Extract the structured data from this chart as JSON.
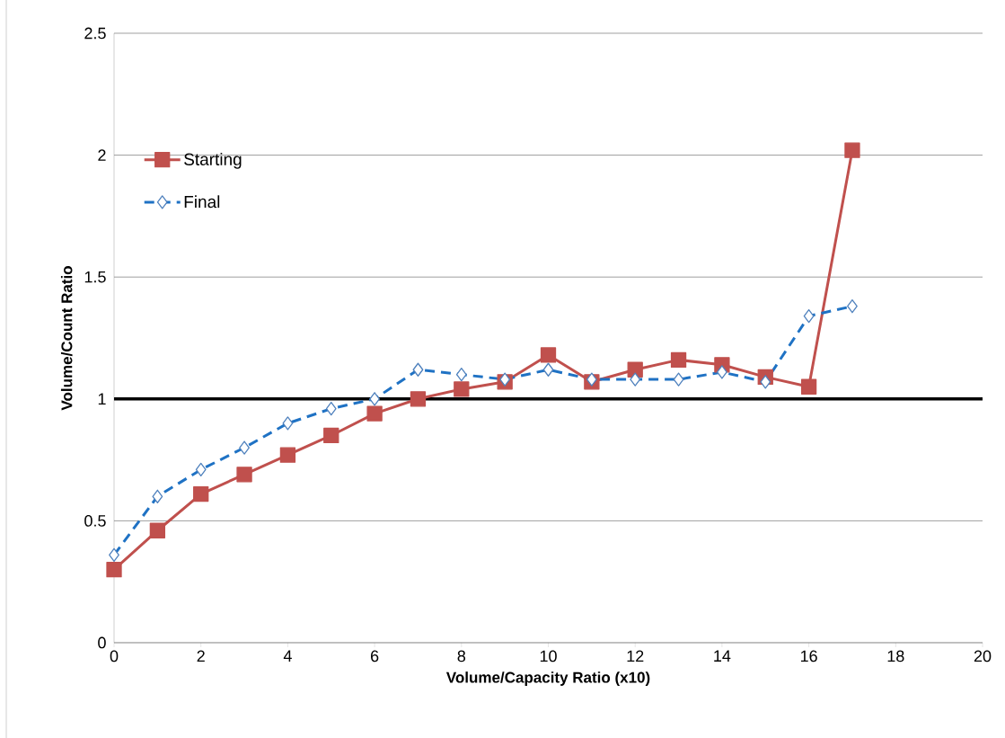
{
  "chart_data": {
    "type": "line",
    "xlabel": "Volume/Capacity Ratio (x10)",
    "ylabel": "Volume/Count Ratio",
    "x": [
      0,
      1,
      2,
      3,
      4,
      5,
      6,
      7,
      8,
      9,
      10,
      11,
      12,
      13,
      14,
      15,
      16,
      17
    ],
    "series": [
      {
        "name": "Starting",
        "color": "#c0504d",
        "marker": "square",
        "line_style": "solid",
        "values": [
          0.3,
          0.46,
          0.61,
          0.69,
          0.77,
          0.85,
          0.94,
          1.0,
          1.04,
          1.07,
          1.18,
          1.07,
          1.12,
          1.16,
          1.14,
          1.09,
          1.05,
          2.02
        ]
      },
      {
        "name": "Final",
        "color": "#1f72c4",
        "marker": "diamond",
        "line_style": "dashed",
        "values": [
          0.36,
          0.6,
          0.71,
          0.8,
          0.9,
          0.96,
          1.0,
          1.12,
          1.1,
          1.08,
          1.12,
          1.08,
          1.08,
          1.08,
          1.11,
          1.07,
          1.34,
          1.38
        ]
      }
    ],
    "xlim": [
      0,
      20
    ],
    "xticks": [
      0,
      2,
      4,
      6,
      8,
      10,
      12,
      14,
      16,
      18,
      20
    ],
    "ylim": [
      0,
      2.5
    ],
    "yticks": [
      0,
      0.5,
      1,
      1.5,
      2,
      2.5
    ],
    "grid": "y",
    "legend": "top left",
    "ref_lines": [
      {
        "axis": "y",
        "value": 1,
        "color": "#000000",
        "line_style": "solid"
      }
    ]
  }
}
